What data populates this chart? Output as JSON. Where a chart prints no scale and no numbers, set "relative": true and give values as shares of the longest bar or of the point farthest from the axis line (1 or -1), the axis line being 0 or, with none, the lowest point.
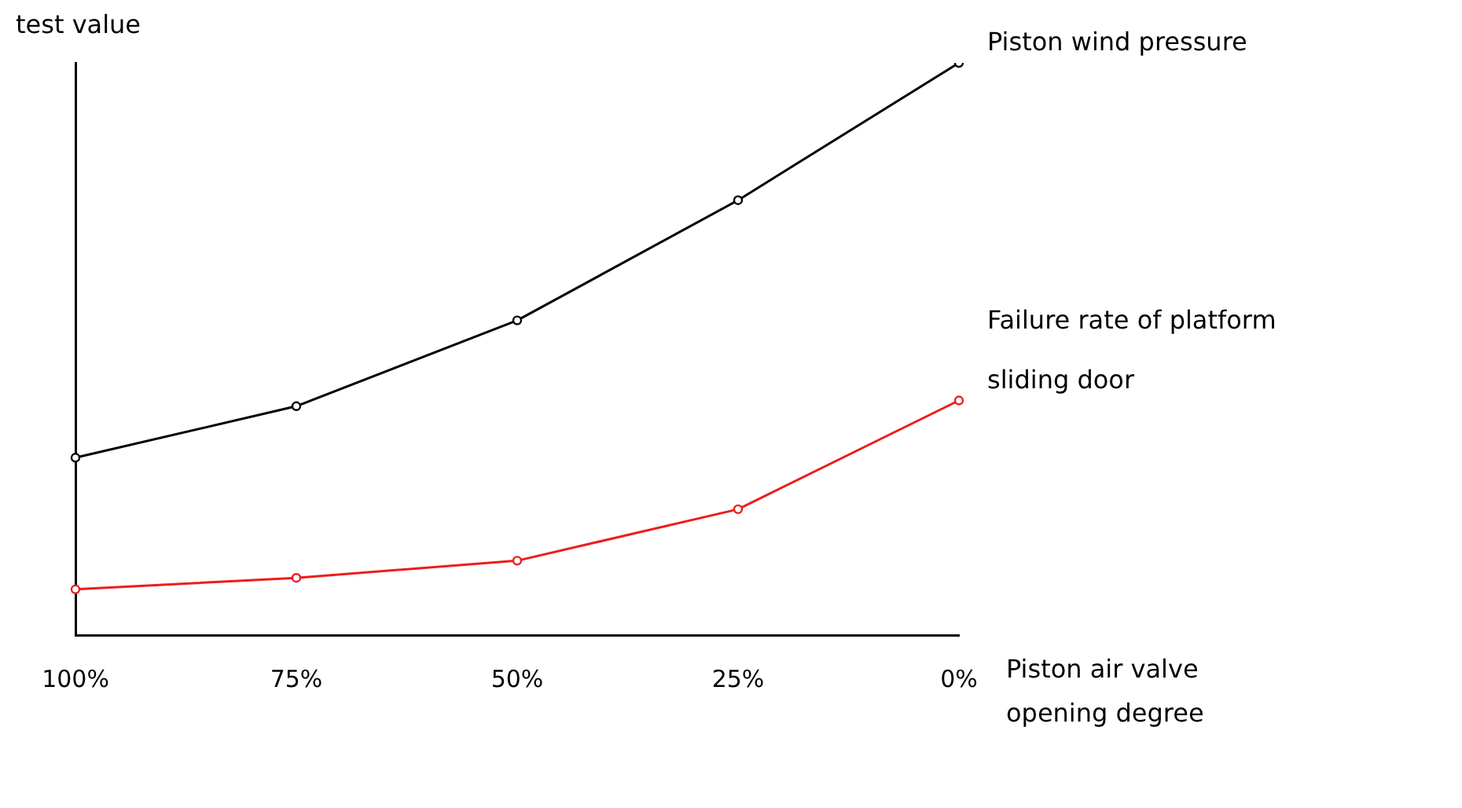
{
  "chart_data": {
    "type": "line",
    "relative": true,
    "ylabel": "test value",
    "xlabel": "Piston air valve opening degree",
    "categories": [
      "100%",
      "75%",
      "50%",
      "25%",
      "0%"
    ],
    "grid": false,
    "legend": false,
    "marker": "circle",
    "line_style": "solid",
    "series": [
      {
        "name": "Piston wind pressure",
        "color": "#000000",
        "values": [
          0.31,
          0.4,
          0.55,
          0.76,
          1
        ]
      },
      {
        "name": "Failure rate of platform sliding door",
        "color": "#ee1c1c",
        "values": [
          0.08,
          0.1,
          0.13,
          0.22,
          0.41
        ]
      }
    ]
  }
}
